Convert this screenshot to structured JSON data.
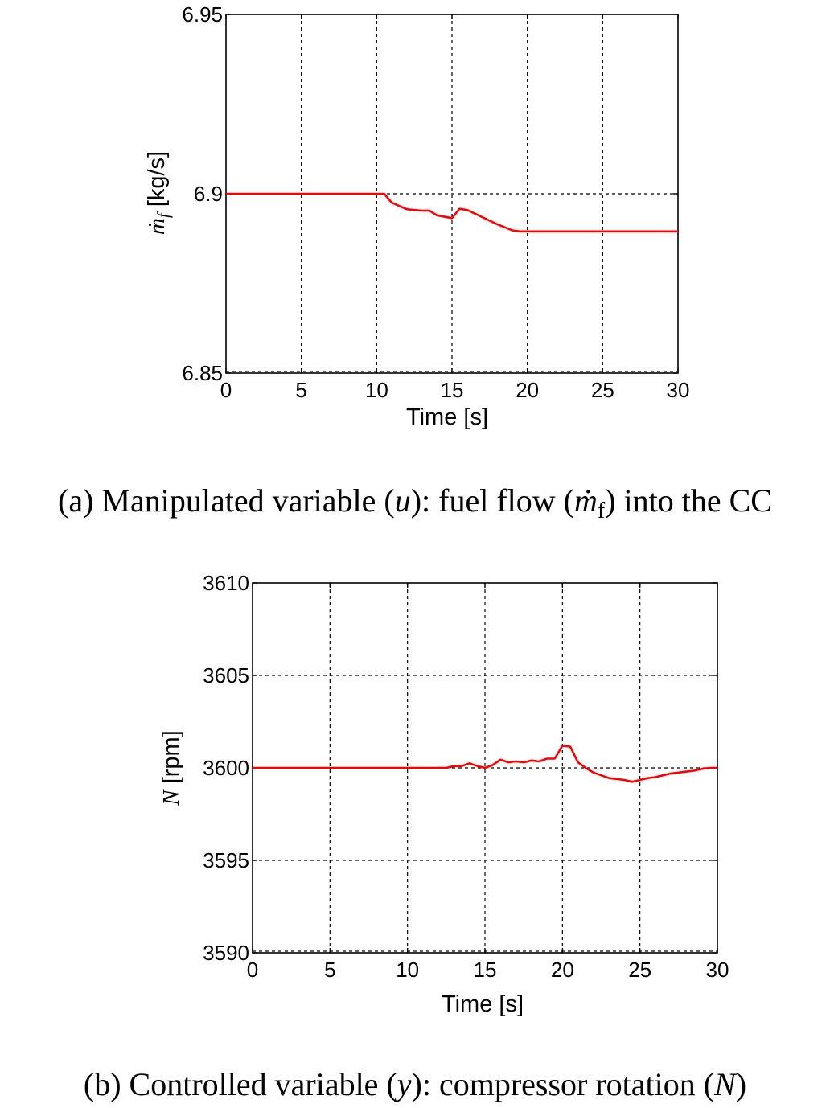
{
  "chart_data": [
    {
      "type": "line",
      "xlabel": "Time [s]",
      "ylabel": {
        "symbol": "ṁ",
        "subscript": "f",
        "unit": " [kg/s]"
      },
      "xlim": [
        0,
        30
      ],
      "ylim": [
        6.85,
        6.95
      ],
      "xticks": [
        "0",
        "5",
        "10",
        "15",
        "20",
        "25",
        "30"
      ],
      "yticks": [
        "6.85",
        "6.9",
        "6.95"
      ],
      "grid": true,
      "series": [
        {
          "color": "#ff0000",
          "x": [
            0,
            10,
            10.5,
            11,
            12,
            13,
            13.5,
            14,
            15,
            15.5,
            16,
            17,
            18,
            19,
            19.5,
            20,
            25,
            30
          ],
          "y": [
            6.9,
            6.9,
            6.9,
            6.8975,
            6.8957,
            6.8953,
            6.8953,
            6.894,
            6.8932,
            6.8958,
            6.8955,
            6.8935,
            6.8915,
            6.8898,
            6.8895,
            6.8895,
            6.8895,
            6.8895
          ]
        }
      ],
      "caption": {
        "p1": "(a) Manipulated variable (",
        "u": "u",
        "p2": "): fuel flow (",
        "m": "ṁ",
        "sub": "f",
        "p3": ") into the CC"
      }
    },
    {
      "type": "line",
      "xlabel": "Time [s]",
      "ylabel": {
        "symbol": "N",
        "unit": " [rpm]"
      },
      "xlim": [
        0,
        30
      ],
      "ylim": [
        3590,
        3610
      ],
      "xticks": [
        "0",
        "5",
        "10",
        "15",
        "20",
        "25",
        "30"
      ],
      "yticks": [
        "3590",
        "3595",
        "3600",
        "3605",
        "3610"
      ],
      "grid": true,
      "series": [
        {
          "color": "#ff0000",
          "x": [
            0,
            12.5,
            13,
            13.5,
            14,
            14.5,
            15,
            15.5,
            16,
            16.5,
            17,
            17.5,
            18,
            18.5,
            19,
            19.5,
            20,
            20.5,
            21,
            21.5,
            22,
            22.5,
            23,
            23.5,
            24,
            24.5,
            25,
            25.5,
            26,
            26.5,
            27,
            27.5,
            28,
            28.5,
            29,
            29.5,
            30
          ],
          "y": [
            3600,
            3600,
            3600.1,
            3600.1,
            3600.25,
            3600.1,
            3600,
            3600.15,
            3600.45,
            3600.3,
            3600.35,
            3600.3,
            3600.4,
            3600.35,
            3600.5,
            3600.5,
            3601.2,
            3601.15,
            3600.3,
            3600,
            3599.75,
            3599.6,
            3599.45,
            3599.4,
            3599.35,
            3599.25,
            3599.35,
            3599.45,
            3599.5,
            3599.6,
            3599.7,
            3599.75,
            3599.8,
            3599.85,
            3599.95,
            3600,
            3600
          ]
        }
      ],
      "caption": {
        "p1": "(b) Controlled variable (",
        "u": "y",
        "p2": "): compressor rotation (",
        "m": "N",
        "p3": ")"
      }
    }
  ]
}
